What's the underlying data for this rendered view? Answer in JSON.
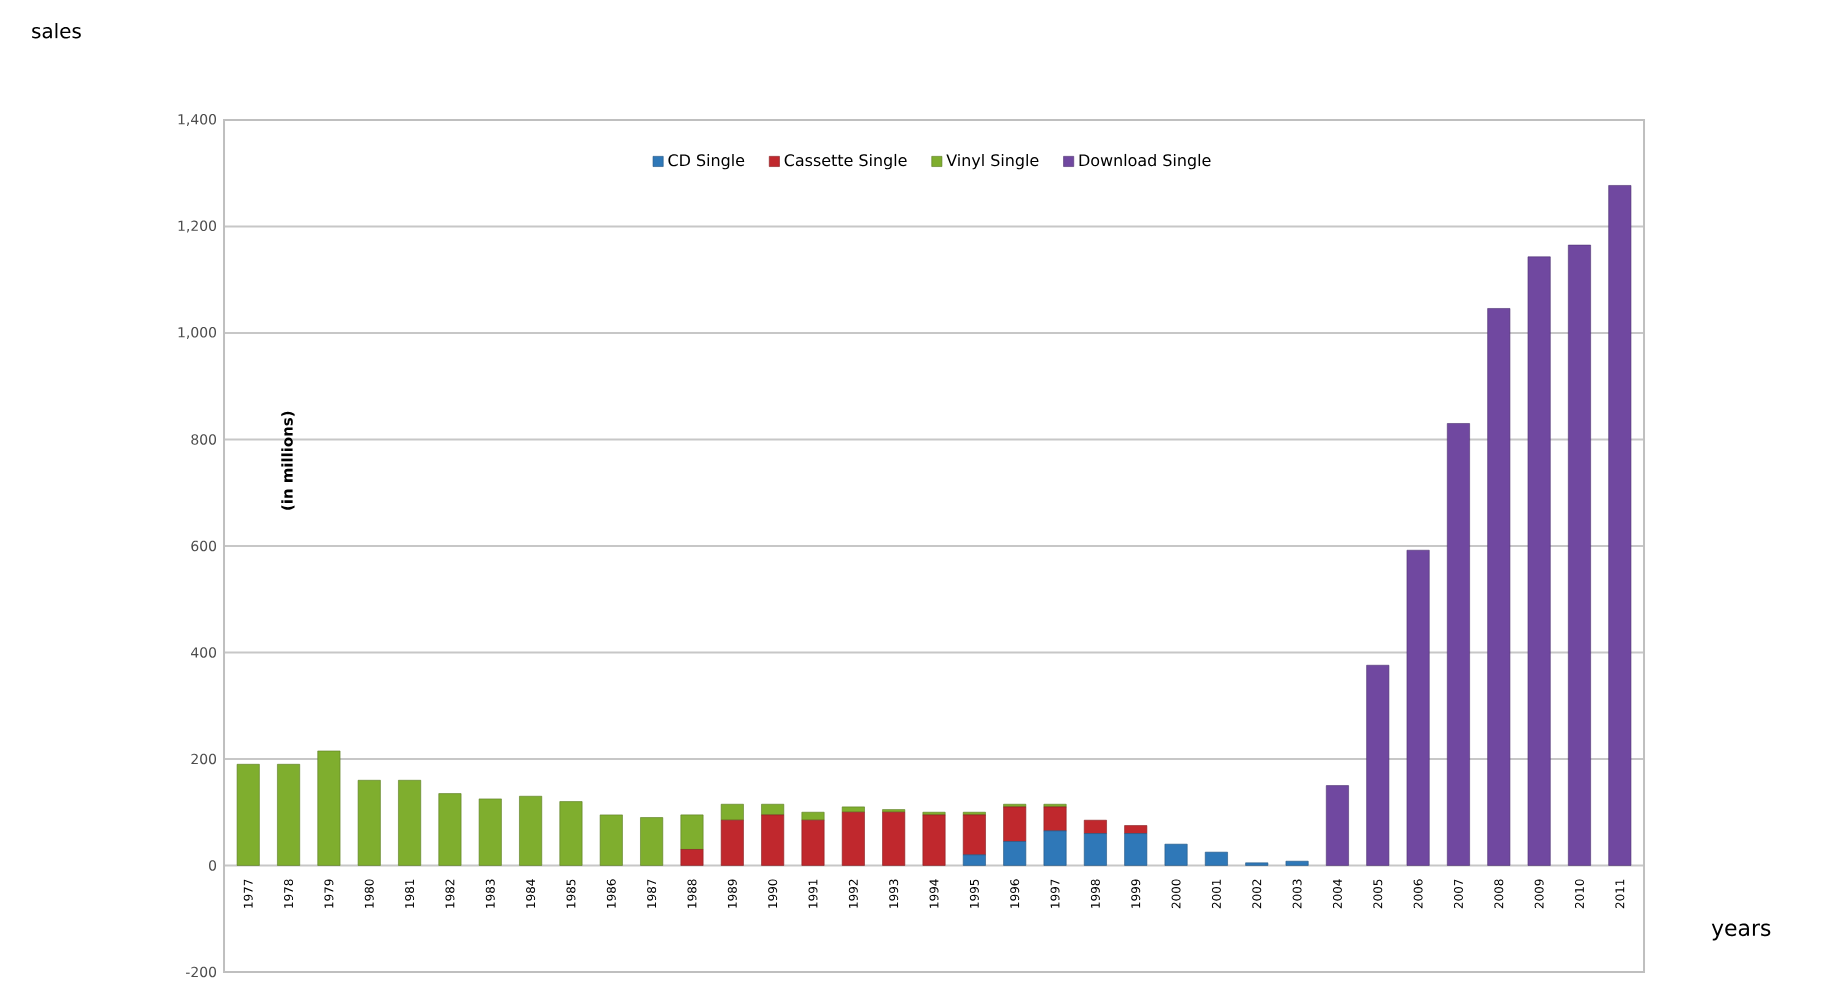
{
  "chart_data": {
    "type": "bar",
    "stacked": true,
    "xlabel": "years",
    "annotations": [
      "sales",
      "(in millions)"
    ],
    "categories": [
      "1977",
      "1978",
      "1979",
      "1980",
      "1981",
      "1982",
      "1983",
      "1984",
      "1985",
      "1986",
      "1987",
      "1988",
      "1989",
      "1990",
      "1991",
      "1992",
      "1993",
      "1994",
      "1995",
      "1996",
      "1997",
      "1998",
      "1999",
      "2000",
      "2001",
      "2002",
      "2003",
      "2004",
      "2005",
      "2006",
      "2007",
      "2008",
      "2009",
      "2010",
      "2011"
    ],
    "series": [
      {
        "name": "CD Single",
        "color": "#2f78b8",
        "values": [
          0,
          0,
          0,
          0,
          0,
          0,
          0,
          0,
          0,
          0,
          0,
          0,
          0,
          0,
          0,
          0,
          0,
          0,
          20,
          45,
          65,
          60,
          60,
          40,
          25,
          5,
          8,
          0,
          0,
          0,
          0,
          0,
          0,
          0,
          0
        ]
      },
      {
        "name": "Cassette Single",
        "color": "#c0282d",
        "values": [
          0,
          0,
          0,
          0,
          0,
          0,
          0,
          0,
          0,
          0,
          0,
          30,
          85,
          95,
          85,
          100,
          100,
          95,
          75,
          65,
          45,
          25,
          15,
          0,
          0,
          0,
          0,
          0,
          0,
          0,
          0,
          0,
          0,
          0,
          0
        ]
      },
      {
        "name": "Vinyl Single",
        "color": "#7fae2e",
        "values": [
          190,
          190,
          215,
          160,
          160,
          135,
          125,
          130,
          120,
          95,
          90,
          65,
          30,
          20,
          15,
          10,
          5,
          5,
          5,
          5,
          5,
          0,
          0,
          0,
          0,
          0,
          0,
          0,
          0,
          0,
          0,
          0,
          0,
          0,
          0
        ]
      },
      {
        "name": "Download Single",
        "color": "#7048a0",
        "values": [
          0,
          0,
          0,
          0,
          0,
          0,
          0,
          0,
          0,
          0,
          0,
          0,
          0,
          0,
          0,
          0,
          0,
          0,
          0,
          0,
          0,
          0,
          0,
          0,
          0,
          0,
          0,
          150,
          376,
          592,
          830,
          1046,
          1143,
          1165,
          1277
        ]
      }
    ],
    "ylim": [
      -200,
      1400
    ],
    "yticks": [
      -200,
      0,
      200,
      400,
      600,
      800,
      {
        "value": 1000,
        "label": "1,000"
      },
      {
        "value": 1200,
        "label": "1,200"
      },
      {
        "value": 1400,
        "label": "1,400"
      }
    ],
    "grid": "y",
    "legend": "top"
  }
}
